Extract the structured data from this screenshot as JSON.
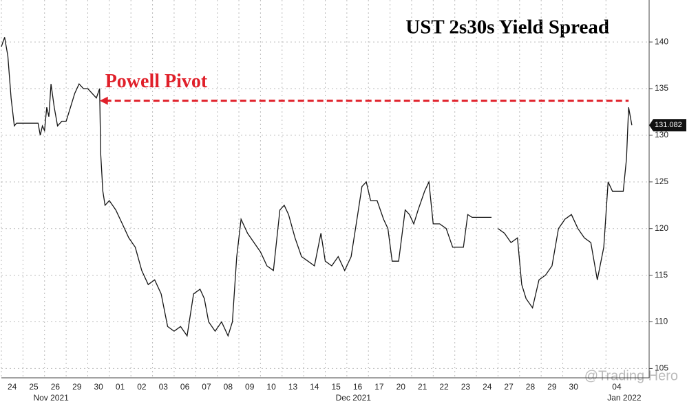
{
  "chart_data": {
    "type": "line",
    "title": "UST 2s30s Yield Spread",
    "annotation": {
      "text": "Powell Pivot",
      "y": 133.7,
      "x": [
        4.55,
        29.05
      ],
      "color": "#e0202a"
    },
    "watermark": "@Trading Hero",
    "last_value": 131.082,
    "grid": true,
    "xlim": [
      0,
      30
    ],
    "ylim": [
      104,
      144.5
    ],
    "yticks": [
      105,
      110,
      115,
      120,
      125,
      130,
      135,
      140
    ],
    "xticks": [
      {
        "value": 0.5,
        "label": "24"
      },
      {
        "value": 1.5,
        "label": "25"
      },
      {
        "value": 2.5,
        "label": "26"
      },
      {
        "value": 3.5,
        "label": "29"
      },
      {
        "value": 4.5,
        "label": "30"
      },
      {
        "value": 5.5,
        "label": "01"
      },
      {
        "value": 6.5,
        "label": "02"
      },
      {
        "value": 7.5,
        "label": "03"
      },
      {
        "value": 8.5,
        "label": "06"
      },
      {
        "value": 9.5,
        "label": "07"
      },
      {
        "value": 10.5,
        "label": "08"
      },
      {
        "value": 11.5,
        "label": "09"
      },
      {
        "value": 12.5,
        "label": "10"
      },
      {
        "value": 13.5,
        "label": "13"
      },
      {
        "value": 14.5,
        "label": "14"
      },
      {
        "value": 15.5,
        "label": "15"
      },
      {
        "value": 16.5,
        "label": "16"
      },
      {
        "value": 17.5,
        "label": "17"
      },
      {
        "value": 18.5,
        "label": "20"
      },
      {
        "value": 19.5,
        "label": "21"
      },
      {
        "value": 20.5,
        "label": "22"
      },
      {
        "value": 21.5,
        "label": "23"
      },
      {
        "value": 22.5,
        "label": "24"
      },
      {
        "value": 23.5,
        "label": "27"
      },
      {
        "value": 24.5,
        "label": "28"
      },
      {
        "value": 25.5,
        "label": "29"
      },
      {
        "value": 26.5,
        "label": "30"
      },
      {
        "value": 28.5,
        "label": "04"
      }
    ],
    "month_labels": [
      {
        "value": 2.3,
        "label": "Nov 2021"
      },
      {
        "value": 16.3,
        "label": "Dec 2021"
      },
      {
        "value": 28.85,
        "label": "Jan 2022"
      }
    ],
    "series": [
      {
        "color": "#151515",
        "x": [
          0,
          0.15,
          0.3,
          0.45,
          0.6,
          0.7,
          1.7,
          1.8,
          1.9,
          2.0,
          2.1,
          2.2,
          2.3,
          2.45,
          2.6,
          2.8,
          3.0,
          3.2,
          3.4,
          3.6,
          3.8,
          4.0,
          4.2,
          4.4,
          4.55,
          4.6,
          4.7,
          4.8,
          5.0,
          5.3,
          5.6,
          5.9,
          6.2,
          6.5,
          6.8,
          7.1,
          7.4,
          7.7,
          8.0,
          8.3,
          8.6,
          8.9,
          9.2,
          9.4,
          9.6,
          9.9,
          10.2,
          10.5,
          10.7,
          10.9,
          11.1,
          11.4,
          11.7,
          12.0,
          12.3,
          12.6,
          12.9,
          13.1,
          13.3,
          13.6,
          13.9,
          14.2,
          14.5,
          14.8,
          15.0,
          15.3,
          15.6,
          15.9,
          16.2,
          16.5,
          16.7,
          16.9,
          17.1,
          17.4,
          17.7,
          17.9,
          18.1,
          18.4,
          18.7,
          18.9,
          19.1,
          19.3,
          19.6,
          19.8,
          20.0,
          20.3,
          20.6,
          20.9,
          21.1,
          21.4,
          21.6,
          21.8,
          22.7,
          22.85,
          23.0,
          23.3,
          23.6,
          23.9,
          24.1,
          24.3,
          24.6,
          24.9,
          25.2,
          25.5,
          25.8,
          26.1,
          26.4,
          26.7,
          27.0,
          27.3,
          27.6,
          27.9,
          28.1,
          28.3,
          28.6,
          28.8,
          28.95,
          29.05,
          29.2
        ],
        "values": [
          139.5,
          140.5,
          138.5,
          134,
          131,
          131.3,
          131.3,
          130,
          131,
          130.5,
          133,
          132,
          135.5,
          133,
          131,
          131.5,
          131.5,
          133,
          134.5,
          135.5,
          135,
          135,
          134.5,
          134,
          135,
          128,
          124,
          122.5,
          123,
          122,
          120.5,
          119,
          118,
          115.5,
          114,
          114.5,
          113,
          109.5,
          109,
          109.5,
          108.5,
          113,
          113.5,
          112.5,
          110,
          109,
          110,
          108.5,
          110,
          117,
          121,
          119.5,
          118.5,
          117.5,
          116,
          115.5,
          122,
          122.5,
          121.5,
          119,
          117,
          116.5,
          116,
          119.5,
          116.5,
          116,
          117,
          115.5,
          117,
          121.5,
          124.5,
          125,
          123,
          123,
          121,
          120,
          116.5,
          116.5,
          122,
          121.5,
          120.5,
          122,
          124,
          125,
          120.5,
          120.5,
          120,
          118,
          118,
          118,
          121.5,
          121.2,
          121.2,
          null,
          120,
          119.5,
          118.5,
          119,
          114,
          112.5,
          111.5,
          114.5,
          115,
          116,
          120,
          121,
          121.5,
          120,
          119,
          118.5,
          114.5,
          118,
          125,
          124,
          124,
          124,
          127.5,
          133,
          131.082
        ]
      }
    ]
  }
}
